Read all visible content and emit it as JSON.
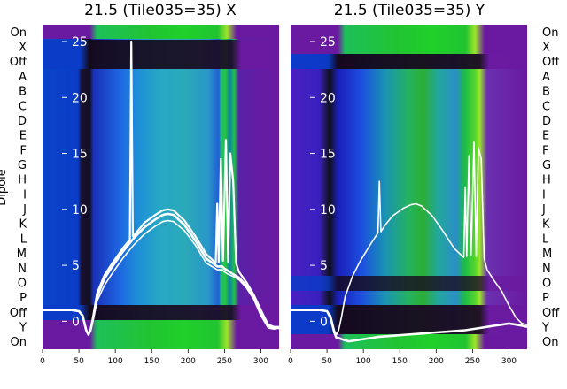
{
  "chart_data": [
    {
      "type": "heatmap",
      "title": "21.5 (Tile035=35) X",
      "ylabel": "Dipole",
      "row_labels": [
        "On",
        "X",
        "Off",
        "A",
        "B",
        "C",
        "D",
        "E",
        "F",
        "G",
        "H",
        "I",
        "J",
        "K",
        "L",
        "M",
        "N",
        "O",
        "P",
        "Off",
        "Y",
        "On"
      ],
      "x_ticks": [
        0,
        50,
        100,
        150,
        200,
        250,
        300
      ],
      "xlim": [
        0,
        325
      ],
      "overlay_ticks": [
        0,
        5,
        10,
        15,
        20,
        25
      ],
      "overlay_ylim": [
        -2.5,
        26.5
      ],
      "series": [
        {
          "x": [
            0,
            20,
            40,
            50,
            55,
            60,
            63,
            66,
            70,
            75,
            85,
            95,
            110,
            125,
            140,
            155,
            165,
            172,
            180,
            195,
            210,
            225,
            240,
            247,
            250,
            255,
            262,
            270,
            280,
            290,
            300,
            310,
            318,
            325
          ],
          "values": [
            1.0,
            1.0,
            1.0,
            0.9,
            0.5,
            -0.8,
            -1.2,
            -0.8,
            0.2,
            1.8,
            3.2,
            4.2,
            5.6,
            6.8,
            7.8,
            8.5,
            8.9,
            9.0,
            8.9,
            8.1,
            6.8,
            5.2,
            4.6,
            4.6,
            4.4,
            4.2,
            4.0,
            3.7,
            3.0,
            2.0,
            0.5,
            -0.6,
            -0.7,
            -0.6
          ]
        },
        {
          "x": [
            0,
            20,
            40,
            50,
            55,
            60,
            63,
            66,
            70,
            75,
            85,
            95,
            110,
            125,
            140,
            155,
            165,
            172,
            180,
            195,
            210,
            225,
            240,
            247,
            250,
            255,
            262,
            270,
            280,
            290,
            300,
            310,
            318,
            325
          ],
          "values": [
            1.0,
            1.0,
            1.0,
            0.9,
            0.5,
            -0.8,
            -1.2,
            -0.8,
            0.4,
            2.2,
            3.8,
            4.8,
            6.2,
            7.4,
            8.4,
            9.1,
            9.5,
            9.6,
            9.5,
            8.6,
            7.2,
            5.6,
            4.9,
            4.9,
            4.7,
            4.5,
            4.2,
            3.9,
            3.2,
            2.2,
            0.8,
            -0.4,
            -0.6,
            -0.6
          ]
        },
        {
          "x": [
            0,
            20,
            40,
            50,
            55,
            60,
            63,
            66,
            70,
            75,
            85,
            95,
            110,
            120,
            122,
            124,
            126,
            130,
            140,
            155,
            165,
            172,
            180,
            195,
            210,
            225,
            238,
            240,
            242,
            245,
            248,
            252,
            255,
            258,
            262,
            266,
            270,
            280,
            290,
            300,
            310,
            318,
            325
          ],
          "values": [
            1.0,
            1.0,
            1.0,
            0.9,
            0.5,
            -0.8,
            -1.2,
            -0.8,
            0.6,
            2.5,
            4.1,
            5.1,
            6.5,
            7.3,
            25.0,
            7.6,
            7.7,
            8.0,
            8.8,
            9.5,
            9.9,
            10.0,
            9.9,
            9.0,
            7.6,
            6.0,
            5.2,
            10.5,
            5.3,
            14.5,
            5.4,
            16.2,
            5.3,
            15.0,
            12.5,
            5.2,
            4.4,
            3.5,
            2.4,
            1.0,
            -0.3,
            -0.5,
            -0.5
          ]
        }
      ]
    },
    {
      "type": "heatmap",
      "title": "21.5 (Tile035=35) Y",
      "ylabel": "",
      "row_labels": [
        "On",
        "X",
        "Off",
        "A",
        "B",
        "C",
        "D",
        "E",
        "F",
        "G",
        "H",
        "I",
        "J",
        "K",
        "L",
        "M",
        "N",
        "O",
        "P",
        "Off",
        "Y",
        "On"
      ],
      "x_ticks": [
        0,
        50,
        100,
        150,
        200,
        250,
        300
      ],
      "xlim": [
        0,
        325
      ],
      "overlay_ticks": [
        0,
        5,
        10,
        15,
        20,
        25
      ],
      "overlay_ylim": [
        -2.5,
        26.5
      ],
      "series": [
        {
          "x": [
            0,
            20,
            40,
            50,
            55,
            60,
            63,
            66,
            70,
            75,
            85,
            95,
            110,
            120,
            122,
            124,
            126,
            130,
            140,
            155,
            165,
            172,
            180,
            195,
            210,
            225,
            238,
            240,
            242,
            245,
            248,
            252,
            255,
            258,
            262,
            266,
            270,
            280,
            290,
            300,
            310,
            318,
            325
          ],
          "values": [
            1.0,
            1.0,
            1.0,
            0.9,
            0.5,
            -0.8,
            -1.2,
            -0.8,
            0.4,
            2.2,
            4.0,
            5.3,
            6.9,
            7.9,
            12.5,
            8.0,
            8.2,
            8.6,
            9.4,
            10.1,
            10.4,
            10.5,
            10.3,
            9.4,
            8.0,
            6.5,
            5.7,
            12.0,
            5.8,
            14.8,
            5.9,
            16.0,
            5.8,
            15.5,
            14.5,
            5.6,
            4.6,
            3.6,
            2.7,
            1.4,
            0.3,
            -0.2,
            -0.3
          ]
        },
        {
          "x": [
            0,
            20,
            40,
            50,
            55,
            60,
            63,
            66,
            70,
            75,
            80,
            90,
            100,
            120,
            140,
            160,
            180,
            200,
            220,
            240,
            260,
            270,
            280,
            290,
            300,
            310,
            318,
            325
          ],
          "values": [
            1.0,
            1.0,
            1.0,
            0.9,
            0.3,
            -1.0,
            -1.5,
            -1.5,
            -1.6,
            -1.7,
            -1.8,
            -1.7,
            -1.6,
            -1.4,
            -1.3,
            -1.2,
            -1.1,
            -1.0,
            -0.9,
            -0.8,
            -0.6,
            -0.5,
            -0.4,
            -0.3,
            -0.2,
            -0.3,
            -0.4,
            -0.5
          ]
        }
      ]
    }
  ]
}
